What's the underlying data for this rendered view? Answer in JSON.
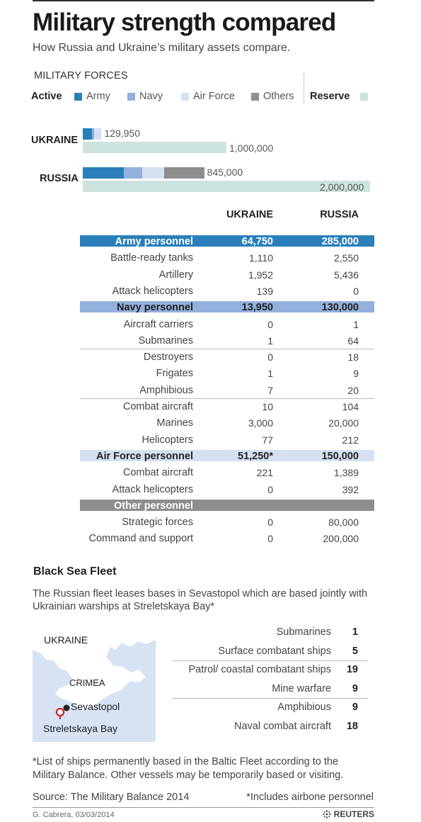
{
  "title": "Military strength compared",
  "subtitle": "How Russia and Ukraine’s military assets compare.",
  "forces_section": {
    "label": "MILITARY FORCES",
    "active_label": "Active",
    "reserve_label": "Reserve",
    "legend": [
      {
        "key": "army",
        "label": "Army",
        "color": "#2a7fba"
      },
      {
        "key": "navy",
        "label": "Navy",
        "color": "#93b0dc"
      },
      {
        "key": "airforce",
        "label": "Air Force",
        "color": "#d6e0f1"
      },
      {
        "key": "others",
        "label": "Others",
        "color": "#8e8e8e"
      },
      {
        "key": "reserve",
        "label": "Reserve",
        "color": "#cde3df"
      }
    ]
  },
  "chart_data": {
    "type": "bar",
    "orientation": "horizontal",
    "stacked": true,
    "categories": [
      "UKRAINE",
      "RUSSIA"
    ],
    "series": [
      {
        "name": "Army",
        "values": [
          64750,
          285000
        ]
      },
      {
        "name": "Navy",
        "values": [
          13950,
          130000
        ]
      },
      {
        "name": "Air Force",
        "values": [
          51250,
          150000
        ]
      },
      {
        "name": "Others",
        "values": [
          0,
          280000
        ]
      }
    ],
    "active_totals": [
      129950,
      845000
    ],
    "active_total_labels": [
      "129,950",
      "845,000"
    ],
    "reserve": [
      1000000,
      2000000
    ],
    "reserve_labels": [
      "1,000,000",
      "2,000,000"
    ],
    "xlim": [
      0,
      2000000
    ]
  },
  "table": {
    "col_ukraine": "UKRAINE",
    "col_russia": "RUSSIA",
    "rows": [
      {
        "label": "Army personnel",
        "ukraine": "64,750",
        "russia": "285,000",
        "header": true,
        "color": "#2a7fba"
      },
      {
        "label": "Battle-ready tanks",
        "ukraine": "1,110",
        "russia": "2,550"
      },
      {
        "label": "Artillery",
        "ukraine": "1,952",
        "russia": "5,436"
      },
      {
        "label": "Attack helicopters",
        "ukraine": "139",
        "russia": "0"
      },
      {
        "label": "Navy personnel",
        "ukraine": "13,950",
        "russia": "130,000",
        "header": true,
        "color": "#93b0dc"
      },
      {
        "label": "Aircraft carriers",
        "ukraine": "0",
        "russia": "1"
      },
      {
        "label": "Submarines",
        "ukraine": "1",
        "russia": "64",
        "divider_after": true
      },
      {
        "label": "Destroyers",
        "ukraine": "0",
        "russia": "18"
      },
      {
        "label": "Frigates",
        "ukraine": "1",
        "russia": "9"
      },
      {
        "label": "Amphibious",
        "ukraine": "7",
        "russia": "20",
        "divider_after": true
      },
      {
        "label": "Combat aircraft",
        "ukraine": "10",
        "russia": "104"
      },
      {
        "label": "Marines",
        "ukraine": "3,000",
        "russia": "20,000"
      },
      {
        "label": "Helicopters",
        "ukraine": "77",
        "russia": "212"
      },
      {
        "label": "Air Force personnel",
        "ukraine": "51,250*",
        "russia": "150,000",
        "header": true,
        "color": "#d6e0f1"
      },
      {
        "label": "Combat aircraft",
        "ukraine": "221",
        "russia": "1,389"
      },
      {
        "label": "Attack helicopters",
        "ukraine": "0",
        "russia": "392"
      },
      {
        "label": "Other personnel",
        "ukraine": "",
        "russia": "",
        "header": true,
        "color": "#8e8e8e"
      },
      {
        "label": "Strategic forces",
        "ukraine": "0",
        "russia": "80,000"
      },
      {
        "label": "Command and support",
        "ukraine": "0",
        "russia": "200,000"
      }
    ]
  },
  "fleet": {
    "title": "Black Sea Fleet",
    "description": "The Russian fleet leases bases in Sevastopol which are based jointly with Ukrainian warships at Streletskaya Bay*",
    "map": {
      "label_ukraine": "UKRAINE",
      "label_crimea": "CRIMEA",
      "label_sevastopol": "Sevastopol",
      "label_streletskaya": "Streletskaya Bay"
    },
    "items": [
      {
        "label": "Submarines",
        "value": "1"
      },
      {
        "label": "Surface combatant ships",
        "value": "5",
        "divider_after": true
      },
      {
        "label": "Patrol/ coastal combatant ships",
        "value": "19"
      },
      {
        "label": "Mine warfare",
        "value": "9",
        "divider_after": true
      },
      {
        "label": "Amphibious",
        "value": "9"
      },
      {
        "label": "Naval combat aircraft",
        "value": "18"
      }
    ]
  },
  "footnote": "*List of ships permanently based in the Baltic Fleet according to the Military Balance. Other vessels may be temporarily based or visiting.",
  "source": "Source: The Military Balance 2014",
  "airborne_note": "*Includes airbone personnel",
  "credit": "G. Cabrera, 03/03/2014",
  "brand": "REUTERS"
}
